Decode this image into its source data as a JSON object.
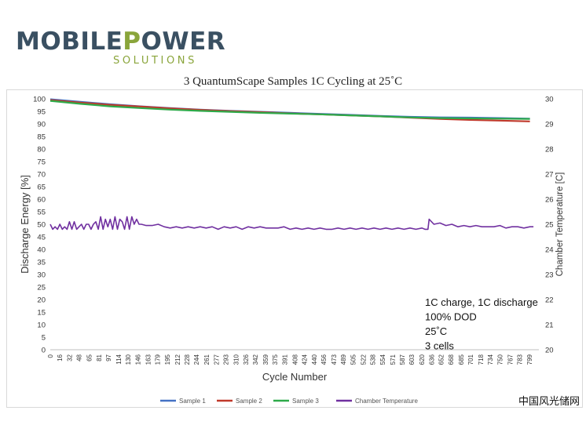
{
  "logo": {
    "part1": "MOBILE",
    "part2": "P",
    "part3": "OWER",
    "subtitle": "SOLUTIONS"
  },
  "watermark": "中国风光储网",
  "chart_data": {
    "type": "line",
    "title": "3 QuantumScape Samples 1C Cycling at 25˚C",
    "xlabel": "Cycle Number",
    "ylabel": "Discharge Energy [%]",
    "y2label": "Chamber Temperature [C]",
    "xlim": [
      0,
      815
    ],
    "ylim": [
      0,
      100
    ],
    "y2lim": [
      20,
      30
    ],
    "x_ticks": [
      0,
      16,
      32,
      48,
      65,
      81,
      97,
      114,
      130,
      146,
      163,
      179,
      195,
      212,
      228,
      244,
      261,
      277,
      293,
      310,
      326,
      342,
      359,
      375,
      391,
      408,
      424,
      440,
      456,
      473,
      489,
      505,
      522,
      538,
      554,
      571,
      587,
      603,
      620,
      636,
      652,
      668,
      685,
      701,
      718,
      734,
      750,
      767,
      783,
      799
    ],
    "y_ticks": [
      0,
      5,
      10,
      15,
      20,
      25,
      30,
      35,
      40,
      45,
      50,
      55,
      60,
      65,
      70,
      75,
      80,
      85,
      90,
      95,
      100
    ],
    "y2_ticks": [
      20,
      21,
      22,
      23,
      24,
      25,
      26,
      27,
      28,
      29,
      30
    ],
    "grid": false,
    "legend_position": "bottom",
    "annotation": [
      "1C charge, 1C discharge",
      "100% DOD",
      "25˚C",
      "3 cells"
    ],
    "series": [
      {
        "name": "Sample 1",
        "color": "#4472c4",
        "axis": "left",
        "x": [
          0,
          50,
          100,
          150,
          200,
          250,
          300,
          350,
          400,
          450,
          500,
          550,
          600,
          650,
          700,
          750,
          800
        ],
        "y": [
          99.8,
          98.8,
          97.8,
          97.0,
          96.3,
          95.7,
          95.2,
          94.8,
          94.4,
          94.0,
          93.6,
          93.2,
          92.8,
          92.6,
          92.5,
          92.3,
          92.1
        ]
      },
      {
        "name": "Sample 2",
        "color": "#c0392b",
        "axis": "left",
        "x": [
          0,
          50,
          100,
          150,
          200,
          250,
          300,
          350,
          400,
          450,
          500,
          550,
          600,
          650,
          700,
          750,
          800
        ],
        "y": [
          99.5,
          98.5,
          97.6,
          96.9,
          96.2,
          95.6,
          95.1,
          94.7,
          94.2,
          93.8,
          93.4,
          93.0,
          92.5,
          92.0,
          91.6,
          91.3,
          91.0
        ]
      },
      {
        "name": "Sample 3",
        "color": "#2eaa4a",
        "axis": "left",
        "x": [
          0,
          50,
          100,
          150,
          200,
          250,
          300,
          350,
          400,
          450,
          500,
          550,
          600,
          650,
          700,
          750,
          800
        ],
        "y": [
          99.2,
          98.0,
          97.0,
          96.3,
          95.7,
          95.2,
          94.8,
          94.4,
          94.1,
          93.8,
          93.4,
          93.0,
          92.6,
          92.3,
          92.2,
          92.1,
          92.0
        ]
      },
      {
        "name": "Chamber Temperature",
        "color": "#7030a0",
        "axis": "right",
        "x": [
          0,
          4,
          8,
          12,
          16,
          20,
          24,
          28,
          32,
          36,
          40,
          44,
          48,
          52,
          56,
          60,
          64,
          68,
          72,
          76,
          80,
          84,
          88,
          92,
          96,
          100,
          104,
          108,
          112,
          116,
          120,
          124,
          128,
          132,
          136,
          140,
          144,
          148,
          152,
          160,
          170,
          180,
          190,
          200,
          210,
          220,
          230,
          240,
          250,
          260,
          270,
          280,
          290,
          300,
          310,
          320,
          330,
          340,
          350,
          360,
          370,
          380,
          390,
          400,
          410,
          420,
          430,
          440,
          450,
          460,
          470,
          480,
          490,
          500,
          510,
          520,
          530,
          540,
          550,
          560,
          570,
          580,
          590,
          600,
          610,
          620,
          625,
          630,
          632,
          640,
          650,
          660,
          670,
          680,
          690,
          700,
          710,
          720,
          730,
          740,
          750,
          760,
          770,
          780,
          790,
          800,
          806
        ],
        "y": [
          25.0,
          24.8,
          24.9,
          24.8,
          25.0,
          24.8,
          24.9,
          24.8,
          25.1,
          24.8,
          25.1,
          24.8,
          24.9,
          25.0,
          24.8,
          25.0,
          25.0,
          24.8,
          25.0,
          25.1,
          24.8,
          25.3,
          24.8,
          25.2,
          24.9,
          25.2,
          24.8,
          25.3,
          24.8,
          25.2,
          25.1,
          24.8,
          25.3,
          24.8,
          25.3,
          25.0,
          25.2,
          25.0,
          25.0,
          24.95,
          24.95,
          25.0,
          24.9,
          24.85,
          24.9,
          24.85,
          24.9,
          24.85,
          24.9,
          24.85,
          24.9,
          24.8,
          24.9,
          24.85,
          24.9,
          24.8,
          24.9,
          24.85,
          24.9,
          24.85,
          24.85,
          24.85,
          24.9,
          24.8,
          24.85,
          24.8,
          24.85,
          24.8,
          24.85,
          24.8,
          24.8,
          24.85,
          24.8,
          24.85,
          24.8,
          24.85,
          24.8,
          24.85,
          24.8,
          24.85,
          24.8,
          24.85,
          24.8,
          24.85,
          24.8,
          24.85,
          24.8,
          24.8,
          25.2,
          25.0,
          25.05,
          24.95,
          25.0,
          24.9,
          24.95,
          24.9,
          24.95,
          24.9,
          24.9,
          24.9,
          24.95,
          24.85,
          24.9,
          24.9,
          24.85,
          24.9,
          24.9
        ]
      }
    ]
  }
}
